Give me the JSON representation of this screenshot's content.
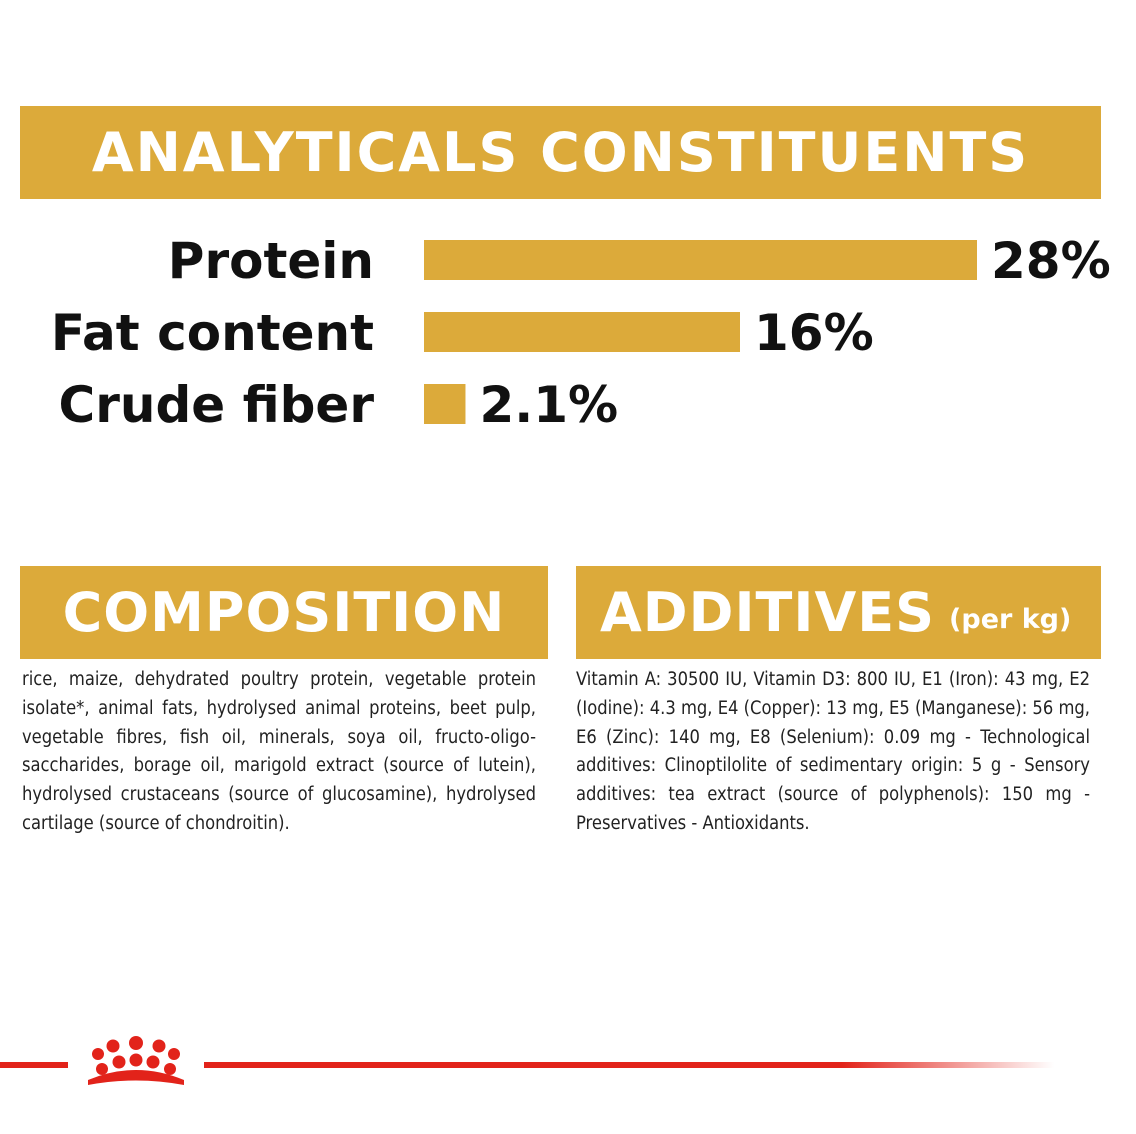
{
  "analytical_title": "ANALYTICALS CONSTITUENTS",
  "composition_title": "COMPOSITION",
  "additives_title": "ADDITIVES",
  "additives_title_suffix": "(per kg)",
  "composition_text": "rice, maize, dehydrated poultry protein, vegetable protein isolate*, animal fats, hydrolysed animal proteins, beet pulp, vegetable fibres, fish oil, minerals, soya oil, fructo-oligo-saccharides, borage oil, marigold extract (source of lutein), hydrolysed crustaceans (source of glucosamine), hydrolysed cartilage (source of chondroitin).",
  "additives_text": "Vitamin A: 30500 IU, Vitamin D3: 800 IU, E1 (Iron): 43 mg, E2 (Iodine): 4.3 mg, E4 (Copper): 13 mg, E5 (Manganese): 56 mg, E6 (Zinc): 140 mg, E8 (Selenium): 0.09 mg - Technological additives: Clinoptilolite of sedimentary origin: 5 g - Sensory additives: tea extract (source of polyphenols): 150 mg - Preservatives - Antioxidants.",
  "colors": {
    "gold": "#dcaa3a",
    "brand_red": "#e2231a",
    "text": "#111111"
  },
  "icons": {
    "brand_logo": "crown-icon"
  },
  "chart_data": {
    "type": "bar",
    "orientation": "horizontal",
    "categories": [
      "Protein",
      "Fat content",
      "Crude fiber"
    ],
    "values": [
      28,
      16,
      2.1
    ],
    "value_labels": [
      "28%",
      "16%",
      "2.1%"
    ],
    "title": "",
    "xlabel": "",
    "ylabel": "",
    "xlim": [
      0,
      28
    ],
    "grid": false
  }
}
